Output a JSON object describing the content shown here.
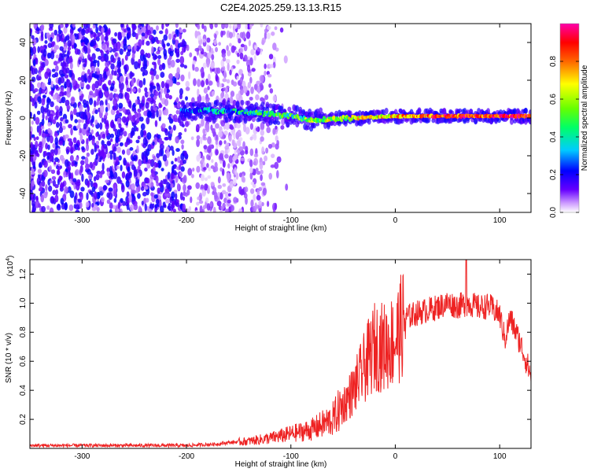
{
  "figure": {
    "title": "C2E4.2025.259.13.13.R15"
  },
  "chart_data": [
    {
      "type": "heatmap",
      "title": "C2E4.2025.259.13.13.R15",
      "xlabel": "Height of straight line (km)",
      "ylabel": "Frequency (Hz)",
      "xlim": [
        -350,
        130
      ],
      "ylim": [
        -50,
        50
      ],
      "x_ticks": [
        -300,
        -200,
        -100,
        0,
        100
      ],
      "y_ticks": [
        -40,
        -20,
        0,
        20,
        40
      ],
      "x_tick_labels": [
        "-300",
        "-200",
        "-100",
        "0",
        "100"
      ],
      "y_tick_labels": [
        "-40",
        "-20",
        "0",
        "20",
        "40"
      ],
      "colorbar": {
        "label": "Normalized spectral amplitude",
        "range": [
          0,
          1
        ],
        "ticks": [
          0.0,
          0.2,
          0.4,
          0.6,
          0.8
        ],
        "tick_labels": [
          "0.0",
          "0.2",
          "0.4",
          "0.6",
          "0.8"
        ],
        "colors": [
          "#ffffff",
          "#cc99ff",
          "#6600ff",
          "#0000ff",
          "#00ccff",
          "#00ff66",
          "#66ff00",
          "#ffff00",
          "#ff6600",
          "#ff0000",
          "#ff00aa"
        ]
      },
      "ridge": {
        "x": [
          -205,
          -180,
          -160,
          -140,
          -120,
          -100,
          -80,
          -60,
          -40,
          -20,
          0,
          20,
          40,
          60,
          80,
          100,
          130
        ],
        "freq": [
          4,
          4,
          3.5,
          3,
          2,
          1,
          -1,
          -0.5,
          0,
          0.5,
          1,
          1,
          1,
          1,
          1,
          1,
          1
        ],
        "amplitude": [
          0.3,
          0.35,
          0.4,
          0.45,
          0.5,
          0.55,
          0.6,
          0.65,
          0.7,
          0.75,
          0.8,
          0.85,
          0.9,
          0.92,
          0.95,
          0.97,
          0.95
        ]
      },
      "noise_region": [
        -350,
        -160
      ]
    },
    {
      "type": "line",
      "xlabel": "Height of straight line (km)",
      "ylabel": "SNR (10 * v/v)",
      "y_multiplier": "(x10",
      "y_multiplier_exp": "4",
      "y_multiplier_close": ")",
      "xlim": [
        -350,
        130
      ],
      "ylim": [
        0,
        1.3
      ],
      "x_ticks": [
        -300,
        -200,
        -100,
        0,
        100
      ],
      "y_ticks": [
        0.2,
        0.4,
        0.6,
        0.8,
        1.0,
        1.2
      ],
      "x_tick_labels": [
        "-300",
        "-200",
        "-100",
        "0",
        "100"
      ],
      "y_tick_labels": [
        "0.2",
        "0.4",
        "0.6",
        "0.8",
        "1.0",
        "1.2"
      ],
      "color": "#ee2222",
      "envelope": {
        "x": [
          -350,
          -200,
          -170,
          -160,
          -140,
          -120,
          -100,
          -80,
          -60,
          -50,
          -40,
          -30,
          -20,
          -10,
          0,
          10,
          20,
          30,
          40,
          50,
          60,
          70,
          80,
          90,
          100,
          105,
          110,
          120,
          130
        ],
        "y": [
          0.02,
          0.02,
          0.03,
          0.04,
          0.05,
          0.07,
          0.1,
          0.13,
          0.2,
          0.3,
          0.4,
          0.55,
          0.7,
          0.7,
          0.75,
          0.9,
          0.93,
          0.95,
          0.97,
          1.0,
          0.98,
          1.0,
          0.97,
          0.98,
          0.92,
          0.75,
          0.9,
          0.72,
          0.5
        ]
      },
      "peak": {
        "x": 68,
        "y": 1.3
      }
    }
  ]
}
